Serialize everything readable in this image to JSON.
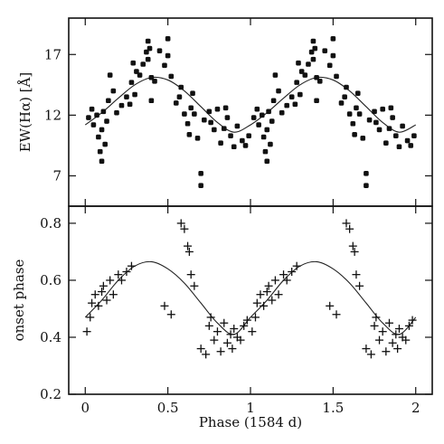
{
  "chart_data": [
    {
      "type": "scatter",
      "panel": "top",
      "ylabel": "EW(Hα) [Å]",
      "xlim": [
        -0.1,
        2.1
      ],
      "ylim": [
        4.5,
        20
      ],
      "yticks": [
        7,
        12,
        17
      ],
      "ytick_labels": [
        "7",
        "12",
        "17"
      ],
      "xticks": [
        0,
        0.5,
        1,
        1.5,
        2
      ],
      "marker": "dot",
      "fit_curve": {
        "x": [
          0.0,
          0.1,
          0.2,
          0.3,
          0.4,
          0.5,
          0.6,
          0.7,
          0.8,
          0.9,
          1.0,
          1.1,
          1.2,
          1.3,
          1.4,
          1.5,
          1.6,
          1.7,
          1.8,
          1.9,
          2.0
        ],
        "y": [
          11.2,
          12.2,
          13.4,
          14.5,
          15.1,
          14.9,
          14.0,
          12.7,
          11.4,
          10.6,
          11.2,
          12.2,
          13.4,
          14.5,
          15.1,
          14.9,
          14.0,
          12.7,
          11.4,
          10.6,
          11.2
        ]
      },
      "points": {
        "x": [
          0.02,
          0.04,
          0.05,
          0.07,
          0.08,
          0.09,
          0.1,
          0.1,
          0.11,
          0.12,
          0.13,
          0.14,
          0.15,
          0.17,
          0.19,
          0.22,
          0.25,
          0.27,
          0.28,
          0.29,
          0.3,
          0.31,
          0.33,
          0.35,
          0.37,
          0.38,
          0.38,
          0.39,
          0.4,
          0.4,
          0.42,
          0.45,
          0.48,
          0.5,
          0.5,
          0.52,
          0.55,
          0.57,
          0.58,
          0.6,
          0.62,
          0.63,
          0.64,
          0.65,
          0.66,
          0.68,
          0.7,
          0.7,
          0.72,
          0.75,
          0.76,
          0.78,
          0.8,
          0.82,
          0.84,
          0.85,
          0.86,
          0.88,
          0.9,
          0.92,
          0.95,
          0.97,
          0.99,
          1.02,
          1.04,
          1.05,
          1.07,
          1.08,
          1.09,
          1.1,
          1.1,
          1.11,
          1.12,
          1.13,
          1.14,
          1.15,
          1.17,
          1.19,
          1.22,
          1.25,
          1.27,
          1.28,
          1.29,
          1.3,
          1.31,
          1.33,
          1.35,
          1.37,
          1.38,
          1.38,
          1.39,
          1.4,
          1.4,
          1.42,
          1.45,
          1.48,
          1.5,
          1.5,
          1.52,
          1.55,
          1.57,
          1.58,
          1.6,
          1.62,
          1.63,
          1.64,
          1.65,
          1.66,
          1.68,
          1.7,
          1.7,
          1.72,
          1.75,
          1.76,
          1.78,
          1.8,
          1.82,
          1.84,
          1.85,
          1.86,
          1.88,
          1.9,
          1.92,
          1.95,
          1.97,
          1.99
        ],
        "y": [
          11.8,
          12.5,
          11.2,
          12.0,
          10.2,
          9.0,
          8.2,
          10.8,
          12.3,
          9.6,
          11.5,
          13.2,
          15.3,
          14.0,
          12.2,
          12.8,
          13.5,
          12.9,
          14.7,
          16.3,
          13.7,
          15.6,
          15.3,
          16.2,
          17.2,
          18.1,
          16.6,
          17.5,
          15.1,
          13.2,
          14.8,
          17.3,
          16.1,
          18.3,
          16.9,
          15.2,
          13.0,
          13.5,
          14.3,
          12.1,
          11.3,
          10.4,
          12.6,
          13.8,
          12.1,
          10.1,
          7.2,
          6.2,
          11.6,
          12.3,
          11.4,
          10.8,
          12.5,
          9.7,
          10.9,
          12.6,
          11.8,
          10.3,
          9.4,
          11.1,
          9.9,
          9.5,
          10.3,
          11.8,
          12.5,
          11.2,
          12.0,
          10.2,
          9.0,
          8.2,
          10.8,
          12.3,
          9.6,
          11.5,
          13.2,
          15.3,
          14.0,
          12.2,
          12.8,
          13.5,
          12.9,
          14.7,
          16.3,
          13.7,
          15.6,
          15.3,
          16.2,
          17.2,
          18.1,
          16.6,
          17.5,
          15.1,
          13.2,
          14.8,
          17.3,
          16.1,
          18.3,
          16.9,
          15.2,
          13.0,
          13.5,
          14.3,
          12.1,
          11.3,
          10.4,
          12.6,
          13.8,
          12.1,
          10.1,
          7.2,
          6.2,
          11.6,
          12.3,
          11.4,
          10.8,
          12.5,
          9.7,
          10.9,
          12.6,
          11.8,
          10.3,
          9.4,
          11.1,
          9.9,
          9.5,
          10.3
        ]
      }
    },
    {
      "type": "scatter",
      "panel": "bottom",
      "ylabel": "onset phase",
      "xlabel": "Phase (1584 d)",
      "xlim": [
        -0.1,
        2.1
      ],
      "ylim": [
        0.2,
        0.86
      ],
      "yticks": [
        0.2,
        0.4,
        0.6,
        0.8
      ],
      "ytick_labels": [
        "0.2",
        "0.4",
        "0.6",
        "0.8"
      ],
      "xticks": [
        0,
        0.5,
        1,
        1.5,
        2
      ],
      "xtick_labels": [
        "0",
        "0.5",
        "1",
        "1.5",
        "2"
      ],
      "marker": "plus",
      "fit_curve": {
        "x": [
          0.0,
          0.1,
          0.2,
          0.3,
          0.4,
          0.5,
          0.6,
          0.7,
          0.8,
          0.9,
          1.0,
          1.1,
          1.2,
          1.3,
          1.4,
          1.5,
          1.6,
          1.7,
          1.8,
          1.9,
          2.0
        ],
        "y": [
          0.47,
          0.53,
          0.6,
          0.65,
          0.665,
          0.64,
          0.59,
          0.52,
          0.45,
          0.41,
          0.47,
          0.53,
          0.6,
          0.65,
          0.665,
          0.64,
          0.59,
          0.52,
          0.45,
          0.41,
          0.47
        ]
      },
      "points": {
        "x": [
          0.01,
          0.03,
          0.04,
          0.06,
          0.08,
          0.1,
          0.11,
          0.13,
          0.15,
          0.17,
          0.2,
          0.22,
          0.25,
          0.28,
          0.48,
          0.52,
          0.58,
          0.6,
          0.62,
          0.63,
          0.64,
          0.66,
          0.7,
          0.73,
          0.75,
          0.76,
          0.78,
          0.8,
          0.82,
          0.84,
          0.86,
          0.88,
          0.89,
          0.9,
          0.92,
          0.94,
          0.96,
          0.98,
          1.01,
          1.03,
          1.04,
          1.06,
          1.08,
          1.1,
          1.11,
          1.13,
          1.15,
          1.17,
          1.2,
          1.22,
          1.25,
          1.28,
          1.48,
          1.52,
          1.58,
          1.6,
          1.62,
          1.63,
          1.64,
          1.66,
          1.7,
          1.73,
          1.75,
          1.76,
          1.78,
          1.8,
          1.82,
          1.84,
          1.86,
          1.88,
          1.89,
          1.9,
          1.92,
          1.94,
          1.96,
          1.98
        ],
        "y": [
          0.42,
          0.47,
          0.52,
          0.55,
          0.51,
          0.56,
          0.58,
          0.53,
          0.6,
          0.55,
          0.62,
          0.6,
          0.63,
          0.65,
          0.51,
          0.48,
          0.8,
          0.78,
          0.72,
          0.7,
          0.62,
          0.58,
          0.36,
          0.34,
          0.44,
          0.47,
          0.39,
          0.42,
          0.35,
          0.45,
          0.38,
          0.41,
          0.36,
          0.43,
          0.4,
          0.39,
          0.44,
          0.46,
          0.42,
          0.47,
          0.52,
          0.55,
          0.51,
          0.56,
          0.58,
          0.53,
          0.6,
          0.55,
          0.62,
          0.6,
          0.63,
          0.65,
          0.51,
          0.48,
          0.8,
          0.78,
          0.72,
          0.7,
          0.62,
          0.58,
          0.36,
          0.34,
          0.44,
          0.47,
          0.39,
          0.42,
          0.35,
          0.45,
          0.38,
          0.41,
          0.36,
          0.43,
          0.4,
          0.39,
          0.44,
          0.46
        ]
      }
    }
  ]
}
